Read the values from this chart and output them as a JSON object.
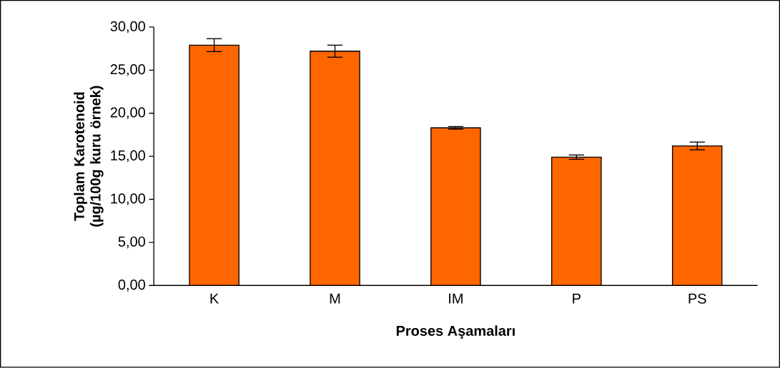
{
  "chart_data": {
    "type": "bar",
    "xlabel": "Proses Aşamaları",
    "ylabel": "Toplam Karotenoid (µg/100g kuru örnek)",
    "categories": [
      "K",
      "M",
      "IM",
      "P",
      "PS"
    ],
    "values": [
      27.9,
      27.2,
      18.3,
      14.9,
      16.2
    ],
    "errors": [
      0.75,
      0.7,
      0.15,
      0.25,
      0.45
    ],
    "color": "#ff6600",
    "ylim": [
      0,
      30
    ],
    "yticks": [
      {
        "value": 0,
        "label": "0,00"
      },
      {
        "value": 5,
        "label": "5,00"
      },
      {
        "value": 10,
        "label": "10,00"
      },
      {
        "value": 15,
        "label": "15,00"
      },
      {
        "value": 20,
        "label": "20,00"
      },
      {
        "value": 25,
        "label": "25,00"
      },
      {
        "value": 30,
        "label": "30,00"
      }
    ],
    "grid": false
  }
}
